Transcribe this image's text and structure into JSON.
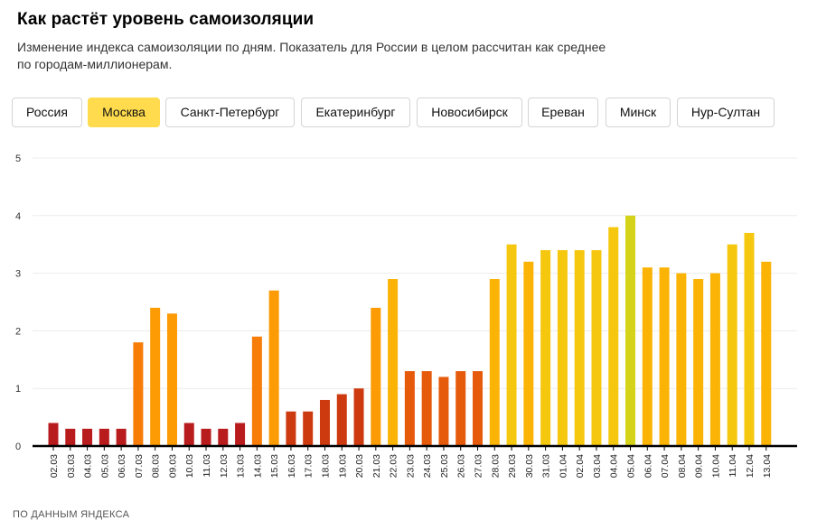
{
  "header": {
    "title": "Как растёт уровень самоизоляции",
    "subtitle_line1": "Изменение индекса самоизоляции по дням. Показатель для России в целом рассчитан как среднее",
    "subtitle_line2": "по городам-миллионерам."
  },
  "tabs": [
    {
      "label": "Россия",
      "active": false
    },
    {
      "label": "Москва",
      "active": true
    },
    {
      "label": "Санкт-Петербург",
      "active": false
    },
    {
      "label": "Екатеринбург",
      "active": false
    },
    {
      "label": "Новосибирск",
      "active": false
    },
    {
      "label": "Ереван",
      "active": false
    },
    {
      "label": "Минск",
      "active": false
    },
    {
      "label": "Нур-Султан",
      "active": false
    }
  ],
  "colors": {
    "active_tab": "#ffdb4d",
    "bar_scale": [
      "#b81c1c",
      "#ce3a10",
      "#e65a0c",
      "#f77d08",
      "#fd9b04",
      "#fbb306",
      "#f5c70e",
      "#d4d31a"
    ]
  },
  "chart_data": {
    "type": "bar",
    "categories": [
      "02.03",
      "03.03",
      "04.03",
      "05.03",
      "06.03",
      "07.03",
      "08.03",
      "09.03",
      "10.03",
      "11.03",
      "12.03",
      "13.03",
      "14.03",
      "15.03",
      "16.03",
      "17.03",
      "18.03",
      "19.03",
      "20.03",
      "21.03",
      "22.03",
      "23.03",
      "24.03",
      "25.03",
      "26.03",
      "27.03",
      "28.03",
      "29.03",
      "30.03",
      "31.03",
      "01.04",
      "02.04",
      "03.04",
      "04.04",
      "05.04",
      "06.04",
      "07.04",
      "08.04",
      "09.04",
      "10.04",
      "11.04",
      "12.04",
      "13.04"
    ],
    "values": [
      0.4,
      0.3,
      0.3,
      0.3,
      0.3,
      1.8,
      2.4,
      2.3,
      0.4,
      0.3,
      0.3,
      0.4,
      1.9,
      2.7,
      0.6,
      0.6,
      0.8,
      0.9,
      1.0,
      2.4,
      2.9,
      1.3,
      1.3,
      1.2,
      1.3,
      1.3,
      2.9,
      3.5,
      3.2,
      3.4,
      3.4,
      3.4,
      3.4,
      3.8,
      4.0,
      3.1,
      3.1,
      3.0,
      2.9,
      3.0,
      3.5,
      3.7,
      3.2
    ],
    "ylim": [
      0,
      5
    ],
    "yticks": [
      0,
      1,
      2,
      3,
      4,
      5
    ],
    "grid": true,
    "source": "ПО ДАННЫМ ЯНДЕКСА"
  }
}
